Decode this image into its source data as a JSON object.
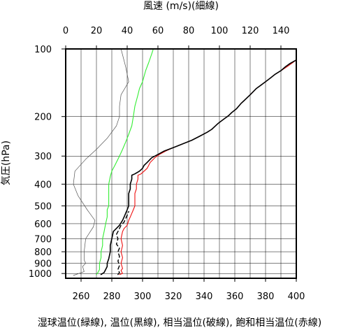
{
  "chart_data": {
    "type": "line",
    "top_axis_title": "風速 (m/s)(細線)",
    "left_axis_title": "気圧(hPa)",
    "bottom_axis_title": "湿球温位(緑線), 温位(黒線), 相当温位(破線), 飽和相当温位(赤線)",
    "x_bottom": {
      "range": [
        250,
        400
      ],
      "ticks": [
        260,
        280,
        300,
        320,
        340,
        360,
        380,
        400
      ],
      "tick_labels": [
        "260",
        "280",
        "300",
        "320",
        "340",
        "360",
        "380",
        "400"
      ]
    },
    "x_top": {
      "range": [
        0,
        150
      ],
      "ticks": [
        0,
        20,
        40,
        60,
        80,
        100,
        120,
        140
      ],
      "tick_labels": [
        "0",
        "20",
        "40",
        "60",
        "80",
        "100",
        "120",
        "140"
      ]
    },
    "y": {
      "scale": "log",
      "reversed": true,
      "range": [
        100,
        1050
      ],
      "ticks": [
        100,
        200,
        300,
        400,
        500,
        600,
        700,
        800,
        900,
        1000
      ],
      "tick_labels": [
        "100",
        "200",
        "300",
        "400",
        "500",
        "600",
        "700",
        "800",
        "900",
        "1000"
      ]
    },
    "grid": true,
    "series": [
      {
        "key": "wind",
        "axis": "top",
        "color": "#555555",
        "dash": "",
        "width": 0.7,
        "points": [
          [
            5,
            1020
          ],
          [
            12,
            980
          ],
          [
            11,
            930
          ],
          [
            13,
            900
          ],
          [
            12,
            870
          ],
          [
            12,
            800
          ],
          [
            13,
            700
          ],
          [
            18,
            620
          ],
          [
            19,
            580
          ],
          [
            14,
            520
          ],
          [
            8,
            450
          ],
          [
            5,
            400
          ],
          [
            6,
            350
          ],
          [
            13,
            310
          ],
          [
            20,
            280
          ],
          [
            27,
            250
          ],
          [
            33,
            220
          ],
          [
            35,
            200
          ],
          [
            35,
            180
          ],
          [
            36,
            160
          ],
          [
            41,
            140
          ],
          [
            39,
            120
          ],
          [
            36,
            100
          ]
        ]
      },
      {
        "key": "wet_bulb_theta",
        "axis": "bottom",
        "color": "#33ee33",
        "dash": "",
        "width": 1.1,
        "points": [
          [
            270,
            1010
          ],
          [
            271,
            990
          ],
          [
            272,
            960
          ],
          [
            272,
            900
          ],
          [
            273,
            850
          ],
          [
            273,
            800
          ],
          [
            274,
            750
          ],
          [
            274,
            700
          ],
          [
            275,
            650
          ],
          [
            276,
            600
          ],
          [
            277,
            560
          ],
          [
            277,
            520
          ],
          [
            278,
            500
          ],
          [
            278,
            450
          ],
          [
            278,
            400
          ],
          [
            279,
            370
          ],
          [
            280,
            350
          ],
          [
            282,
            330
          ],
          [
            285,
            300
          ],
          [
            287,
            280
          ],
          [
            289,
            260
          ],
          [
            291,
            240
          ],
          [
            293,
            220
          ],
          [
            294,
            200
          ],
          [
            295,
            180
          ],
          [
            297,
            160
          ],
          [
            298,
            150
          ],
          [
            300,
            140
          ],
          [
            302,
            125
          ],
          [
            304,
            115
          ],
          [
            306,
            105
          ],
          [
            307,
            100
          ]
        ]
      },
      {
        "key": "theta_e",
        "axis": "bottom",
        "color": "#000000",
        "dash": "5,4",
        "width": 1.4,
        "points": [
          [
            284,
            1010
          ],
          [
            285,
            990
          ],
          [
            284,
            960
          ],
          [
            285,
            920
          ],
          [
            284,
            880
          ],
          [
            285,
            840
          ],
          [
            284,
            800
          ],
          [
            285,
            770
          ],
          [
            283,
            740
          ],
          [
            284,
            700
          ],
          [
            283,
            670
          ],
          [
            284,
            650
          ],
          [
            285,
            630
          ],
          [
            286,
            610
          ],
          [
            288,
            590
          ],
          [
            289,
            570
          ],
          [
            290,
            550
          ],
          [
            291,
            530
          ]
        ]
      },
      {
        "key": "theta_es",
        "axis": "bottom",
        "color": "#ee1111",
        "dash": "",
        "width": 1.1,
        "points": [
          [
            285,
            1010
          ],
          [
            287,
            1000
          ],
          [
            286,
            970
          ],
          [
            287,
            950
          ],
          [
            286,
            900
          ],
          [
            287,
            850
          ],
          [
            286,
            800
          ],
          [
            287,
            750
          ],
          [
            286,
            700
          ],
          [
            287,
            650
          ],
          [
            288,
            630
          ],
          [
            290,
            610
          ],
          [
            291,
            580
          ],
          [
            292,
            560
          ],
          [
            293,
            540
          ],
          [
            294,
            520
          ],
          [
            295,
            500
          ],
          [
            295,
            480
          ],
          [
            295,
            460
          ],
          [
            295,
            440
          ],
          [
            296,
            420
          ],
          [
            296,
            400
          ],
          [
            297,
            380
          ],
          [
            297,
            365
          ],
          [
            299,
            360
          ],
          [
            301,
            350
          ],
          [
            303,
            340
          ],
          [
            304,
            330
          ],
          [
            305,
            320
          ],
          [
            308,
            305
          ],
          [
            311,
            295
          ],
          [
            315,
            285
          ],
          [
            320,
            275
          ],
          [
            326,
            265
          ],
          [
            332,
            255
          ],
          [
            337,
            245
          ],
          [
            342,
            235
          ],
          [
            345,
            228
          ],
          [
            349,
            215
          ],
          [
            353,
            205
          ],
          [
            356,
            198
          ],
          [
            358,
            192
          ],
          [
            361,
            185
          ],
          [
            364,
            175
          ],
          [
            366,
            170
          ],
          [
            370,
            160
          ],
          [
            374,
            150
          ],
          [
            377,
            145
          ],
          [
            380,
            140
          ],
          [
            383,
            135
          ],
          [
            386,
            130
          ],
          [
            390,
            125
          ],
          [
            394,
            120
          ],
          [
            397,
            116
          ],
          [
            400,
            112
          ]
        ]
      },
      {
        "key": "theta",
        "axis": "bottom",
        "color": "#000000",
        "dash": "",
        "width": 1.6,
        "points": [
          [
            273,
            1010
          ],
          [
            275,
            990
          ],
          [
            276,
            960
          ],
          [
            277,
            930
          ],
          [
            277,
            900
          ],
          [
            278,
            860
          ],
          [
            279,
            800
          ],
          [
            279,
            750
          ],
          [
            280,
            700
          ],
          [
            281,
            650
          ],
          [
            283,
            630
          ],
          [
            285,
            610
          ],
          [
            287,
            580
          ],
          [
            288,
            560
          ],
          [
            289,
            540
          ],
          [
            290,
            520
          ],
          [
            291,
            500
          ],
          [
            291,
            480
          ],
          [
            291,
            460
          ],
          [
            291,
            440
          ],
          [
            292,
            420
          ],
          [
            292,
            400
          ],
          [
            293,
            380
          ],
          [
            293,
            365
          ],
          [
            295,
            360
          ],
          [
            298,
            350
          ],
          [
            300,
            340
          ],
          [
            301,
            330
          ],
          [
            303,
            320
          ],
          [
            306,
            305
          ],
          [
            310,
            295
          ],
          [
            314,
            285
          ],
          [
            320,
            275
          ],
          [
            326,
            265
          ],
          [
            332,
            255
          ],
          [
            337,
            245
          ],
          [
            342,
            235
          ],
          [
            345,
            228
          ],
          [
            349,
            215
          ],
          [
            353,
            205
          ],
          [
            356,
            198
          ],
          [
            358,
            192
          ],
          [
            361,
            185
          ],
          [
            364,
            175
          ],
          [
            366,
            170
          ],
          [
            370,
            160
          ],
          [
            374,
            150
          ],
          [
            377,
            145
          ],
          [
            380,
            140
          ],
          [
            383,
            135
          ],
          [
            386,
            130
          ],
          [
            390,
            125
          ],
          [
            393,
            120
          ],
          [
            396,
            116
          ],
          [
            400,
            112
          ]
        ]
      }
    ]
  }
}
